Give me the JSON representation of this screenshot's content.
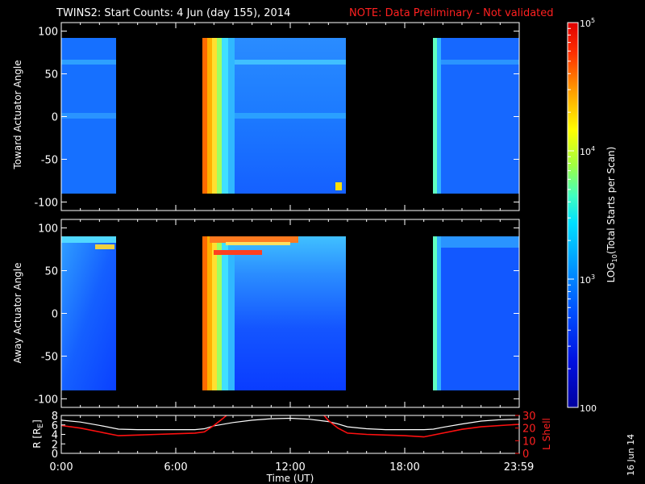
{
  "title": {
    "main": "TWINS2: Start Counts:  4 Jun (day 155), 2014",
    "note": "NOTE: Data Preliminary - Not validated"
  },
  "side_date": "16 Jun 14",
  "colors": {
    "background": "#000000",
    "axes": "#ffffff",
    "note": "#ff2020",
    "r_line": "#ffffff",
    "lshell_line": "#ff1010"
  },
  "colorbar": {
    "label": "LOG10(Total Starts per Scan)",
    "label_main": "LOG",
    "label_sub": "10",
    "label_rest": "(Total Starts per Scan)",
    "scale": "log",
    "range": [
      100,
      100000
    ],
    "ticks": [
      {
        "value": 100000,
        "label": "10",
        "sup": "5"
      },
      {
        "value": 10000,
        "label": "10",
        "sup": "4"
      },
      {
        "value": 1000,
        "label": "10",
        "sup": "3"
      },
      {
        "value": 100,
        "label": "100",
        "sup": ""
      }
    ]
  },
  "chart_data": [
    {
      "type": "heatmap",
      "panel": "toward",
      "ylabel": "Toward Actuator Angle",
      "ylim": [
        -110,
        110
      ],
      "yticks": [
        100,
        50,
        0,
        -50,
        -100
      ],
      "xlim_hours": [
        0,
        24
      ],
      "data_windows_hours": [
        [
          0,
          2.67
        ],
        [
          7.33,
          14.83
        ],
        [
          19.33,
          24
        ]
      ],
      "angle_range": [
        -88,
        90
      ]
    },
    {
      "type": "heatmap",
      "panel": "away",
      "ylabel": "Away Actuator Angle",
      "ylim": [
        -110,
        110
      ],
      "yticks": [
        100,
        50,
        0,
        -50,
        -100
      ],
      "xlim_hours": [
        0,
        24
      ],
      "data_windows_hours": [
        [
          0,
          2.67
        ],
        [
          7.33,
          14.83
        ],
        [
          19.33,
          24
        ]
      ],
      "angle_range": [
        -88,
        90
      ]
    },
    {
      "type": "line",
      "panel": "orbit",
      "ylabel": "R [RE]",
      "ylabel_main": "R [R",
      "ylabel_sub": "E",
      "ylabel_end": "]",
      "ylim": [
        0,
        8
      ],
      "yticks": [
        8,
        6,
        4,
        2,
        0
      ],
      "y2label": "L Shell",
      "y2lim": [
        0,
        30
      ],
      "y2ticks": [
        30,
        20,
        10,
        0
      ],
      "xlabel": "Time (UT)",
      "xticks": [
        "0:00",
        "6:00",
        "12:00",
        "18:00",
        "23:59"
      ],
      "xtick_hours": [
        0,
        6,
        12,
        18,
        23.98
      ],
      "series": [
        {
          "name": "R",
          "axis": "left",
          "x": [
            0,
            1,
            2,
            3,
            4,
            5,
            6,
            7,
            7.5,
            8,
            9,
            10,
            11,
            12,
            13,
            14,
            14.5,
            15,
            16,
            17,
            18,
            19,
            19.5,
            20,
            21,
            22,
            23,
            24
          ],
          "y": [
            7.0,
            6.6,
            5.9,
            5.1,
            5.0,
            5.0,
            5.0,
            5.0,
            5.2,
            5.8,
            6.5,
            7.0,
            7.3,
            7.4,
            7.2,
            6.7,
            6.2,
            5.6,
            5.2,
            5.0,
            5.0,
            5.0,
            5.1,
            5.5,
            6.2,
            6.8,
            7.1,
            7.2
          ]
        },
        {
          "name": "L Shell",
          "axis": "right",
          "x": [
            0,
            1,
            2,
            3,
            4,
            5,
            6,
            7,
            7.5,
            8,
            8.5,
            8.9,
            13.6,
            14,
            14.5,
            15,
            16,
            17,
            18,
            19,
            20,
            21,
            22,
            23,
            24
          ],
          "y": [
            22,
            20,
            17,
            14,
            14.5,
            15,
            15.5,
            16,
            17,
            22,
            28,
            33,
            33,
            26,
            20,
            16,
            15,
            14.5,
            14,
            13,
            16,
            19,
            21,
            22,
            23
          ]
        }
      ]
    }
  ]
}
